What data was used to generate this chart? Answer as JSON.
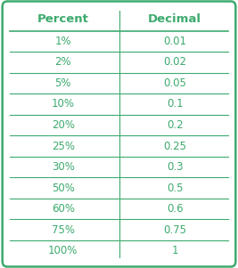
{
  "headers": [
    "Percent",
    "Decimal"
  ],
  "rows": [
    [
      "1%",
      "0.01"
    ],
    [
      "2%",
      "0.02"
    ],
    [
      "5%",
      "0.05"
    ],
    [
      "10%",
      "0.1"
    ],
    [
      "20%",
      "0.2"
    ],
    [
      "25%",
      "0.25"
    ],
    [
      "30%",
      "0.3"
    ],
    [
      "50%",
      "0.5"
    ],
    [
      "60%",
      "0.6"
    ],
    [
      "75%",
      "0.75"
    ],
    [
      "100%",
      "1"
    ]
  ],
  "header_color": "#3daa6e",
  "text_color": "#3daa6e",
  "border_color": "#3daa6e",
  "bg_color": "#ffffff",
  "outer_bg": "#ffffff",
  "header_font_size": 9.5,
  "cell_font_size": 8.5,
  "fig_width": 2.67,
  "fig_height": 3.01
}
